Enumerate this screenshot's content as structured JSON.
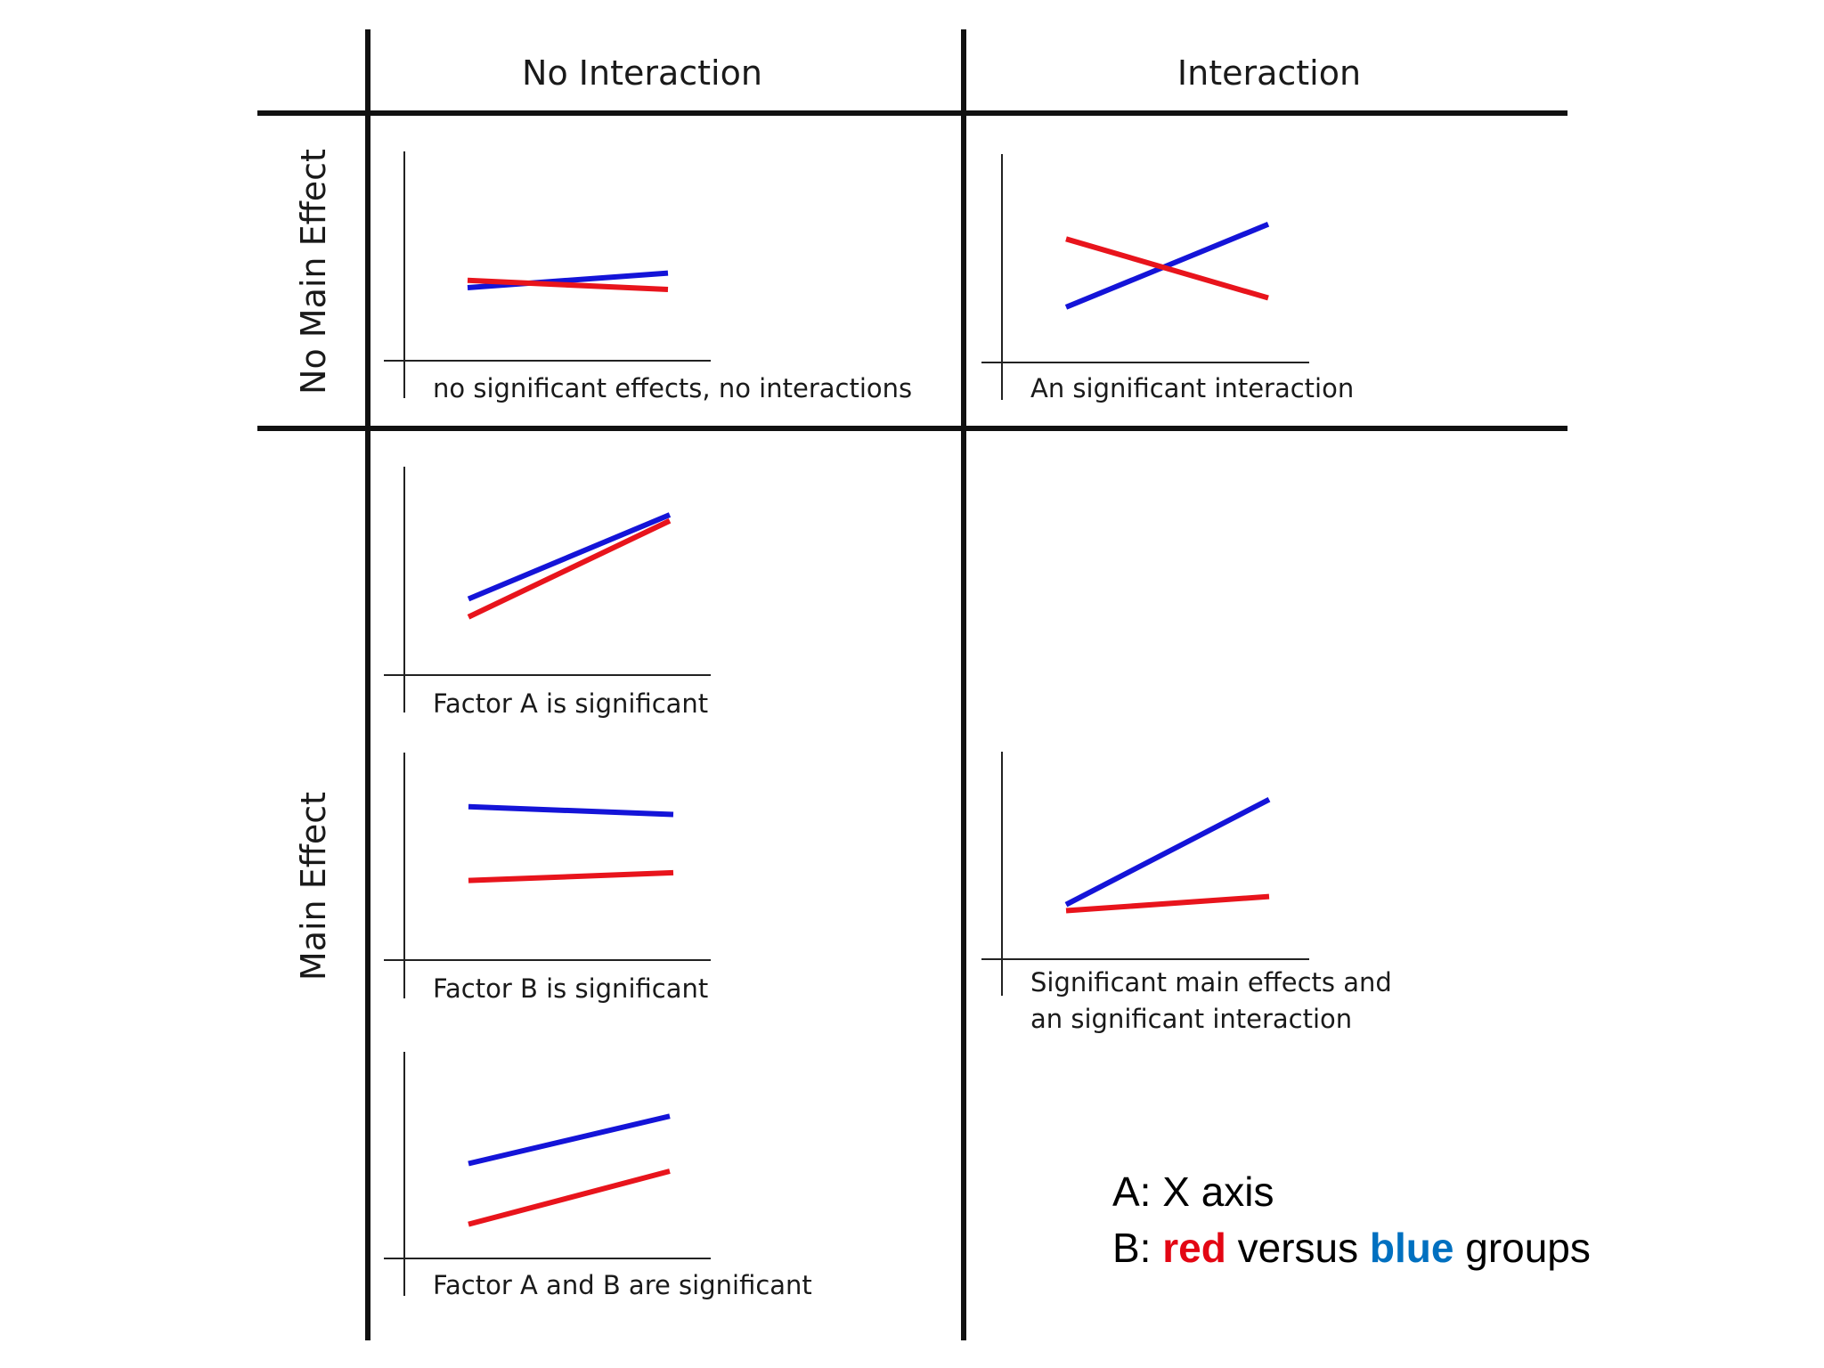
{
  "headers": {
    "col_no_interaction": "No Interaction",
    "col_interaction": "Interaction",
    "row_no_main_effect": "No Main Effect",
    "row_main_effect": "Main Effect"
  },
  "legend": {
    "line1": "A: X axis",
    "line2_prefix": "B: ",
    "red_word": "red",
    "middle": " versus ",
    "blue_word": "blue",
    "suffix": " groups"
  },
  "colors": {
    "red": "#e8141c",
    "blue": "#1414d8",
    "legend_red": "#e30613",
    "legend_blue": "#0070c0",
    "grid": "#111111"
  },
  "chart_data": [
    {
      "type": "line",
      "caption": [
        "no significant effects, no interactions"
      ],
      "x": [
        0,
        1
      ],
      "ylim": [
        0,
        1
      ],
      "series": [
        {
          "color": "blue",
          "values": [
            0.4,
            0.48
          ]
        },
        {
          "color": "red",
          "values": [
            0.44,
            0.39
          ]
        }
      ]
    },
    {
      "type": "line",
      "caption": [
        "An significant interaction"
      ],
      "x": [
        0,
        1
      ],
      "ylim": [
        0,
        1
      ],
      "series": [
        {
          "color": "blue",
          "values": [
            0.3,
            0.75
          ]
        },
        {
          "color": "red",
          "values": [
            0.67,
            0.35
          ]
        }
      ]
    },
    {
      "type": "line",
      "caption": [
        "Factor A is significant"
      ],
      "x": [
        0,
        1
      ],
      "ylim": [
        0,
        1
      ],
      "series": [
        {
          "color": "blue",
          "values": [
            0.38,
            0.8
          ]
        },
        {
          "color": "red",
          "values": [
            0.29,
            0.77
          ]
        }
      ]
    },
    {
      "type": "line",
      "caption": [
        "Factor B is significant"
      ],
      "x": [
        0,
        1
      ],
      "ylim": [
        0,
        1
      ],
      "series": [
        {
          "color": "blue",
          "values": [
            0.79,
            0.75
          ]
        },
        {
          "color": "red",
          "values": [
            0.41,
            0.45
          ]
        }
      ]
    },
    {
      "type": "line",
      "caption": [
        "Significant main effects and",
        "an significant interaction"
      ],
      "x": [
        0,
        1
      ],
      "ylim": [
        0,
        1
      ],
      "series": [
        {
          "color": "blue",
          "values": [
            0.27,
            0.79
          ]
        },
        {
          "color": "red",
          "values": [
            0.24,
            0.31
          ]
        }
      ]
    },
    {
      "type": "line",
      "caption": [
        "Factor A and B are significant"
      ],
      "x": [
        0,
        1
      ],
      "ylim": [
        0,
        1
      ],
      "series": [
        {
          "color": "blue",
          "values": [
            0.5,
            0.75
          ]
        },
        {
          "color": "red",
          "values": [
            0.18,
            0.46
          ]
        }
      ]
    }
  ]
}
